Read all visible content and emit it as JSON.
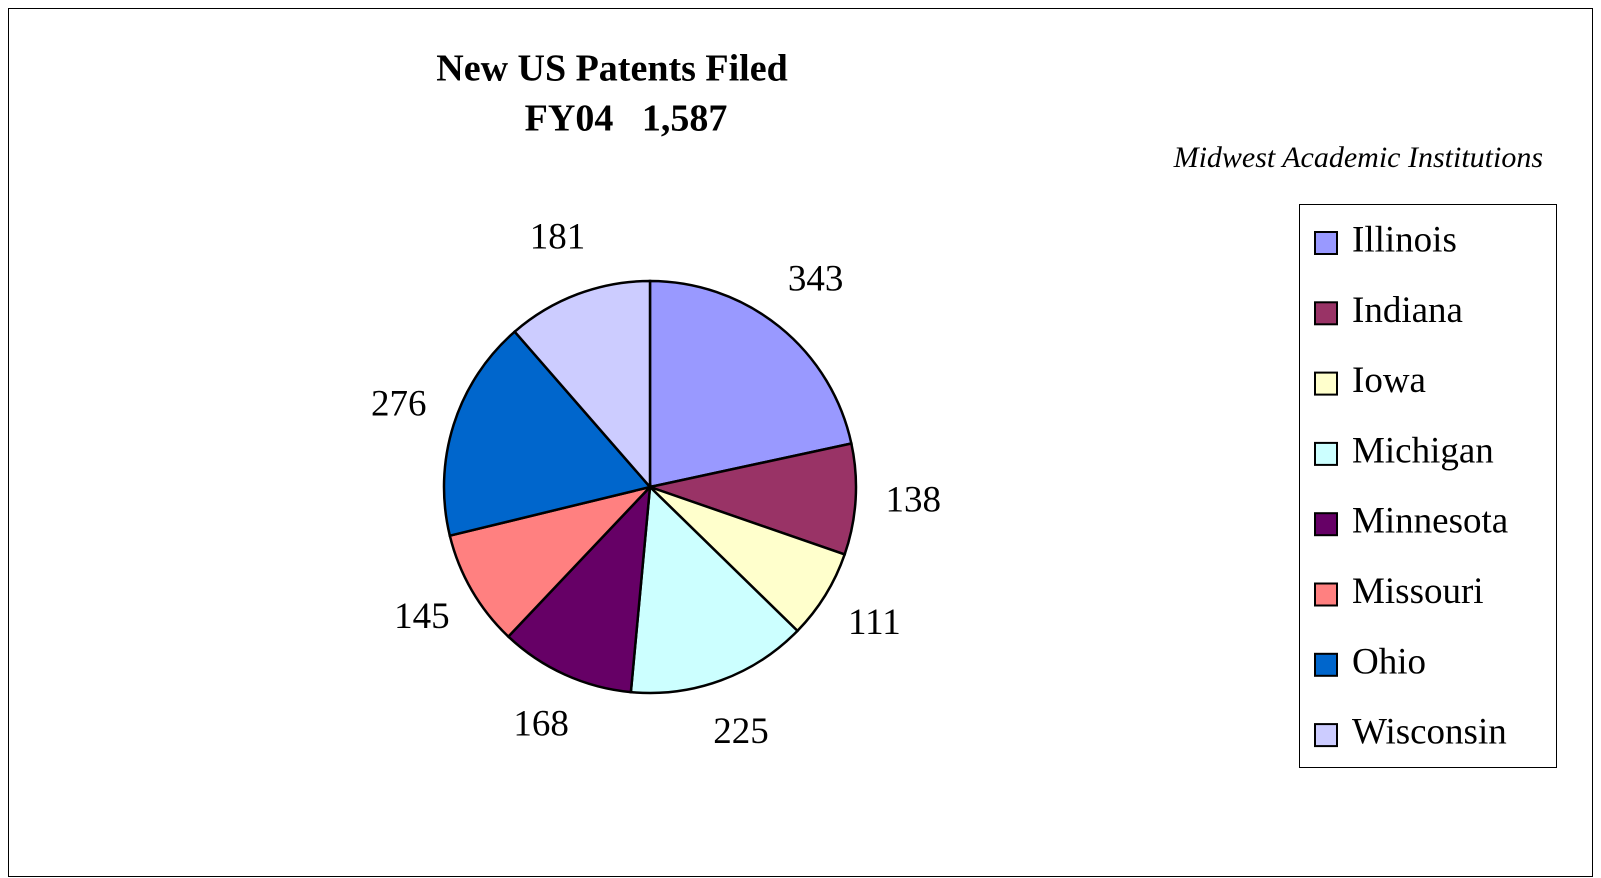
{
  "chart_data": {
    "type": "pie",
    "title": [
      "New US Patents Filed",
      "FY04   1,587"
    ],
    "subtitle": "Midwest Academic Institutions",
    "categories": [
      "Illinois",
      "Indiana",
      "Iowa",
      "Michigan",
      "Minnesota",
      "Missouri",
      "Ohio",
      "Wisconsin"
    ],
    "values": [
      343,
      138,
      111,
      225,
      168,
      145,
      276,
      181
    ],
    "colors": [
      "#9999ff",
      "#993366",
      "#ffffcc",
      "#ccffff",
      "#660066",
      "#ff8080",
      "#0066cc",
      "#ccccff"
    ],
    "legend": "right"
  }
}
